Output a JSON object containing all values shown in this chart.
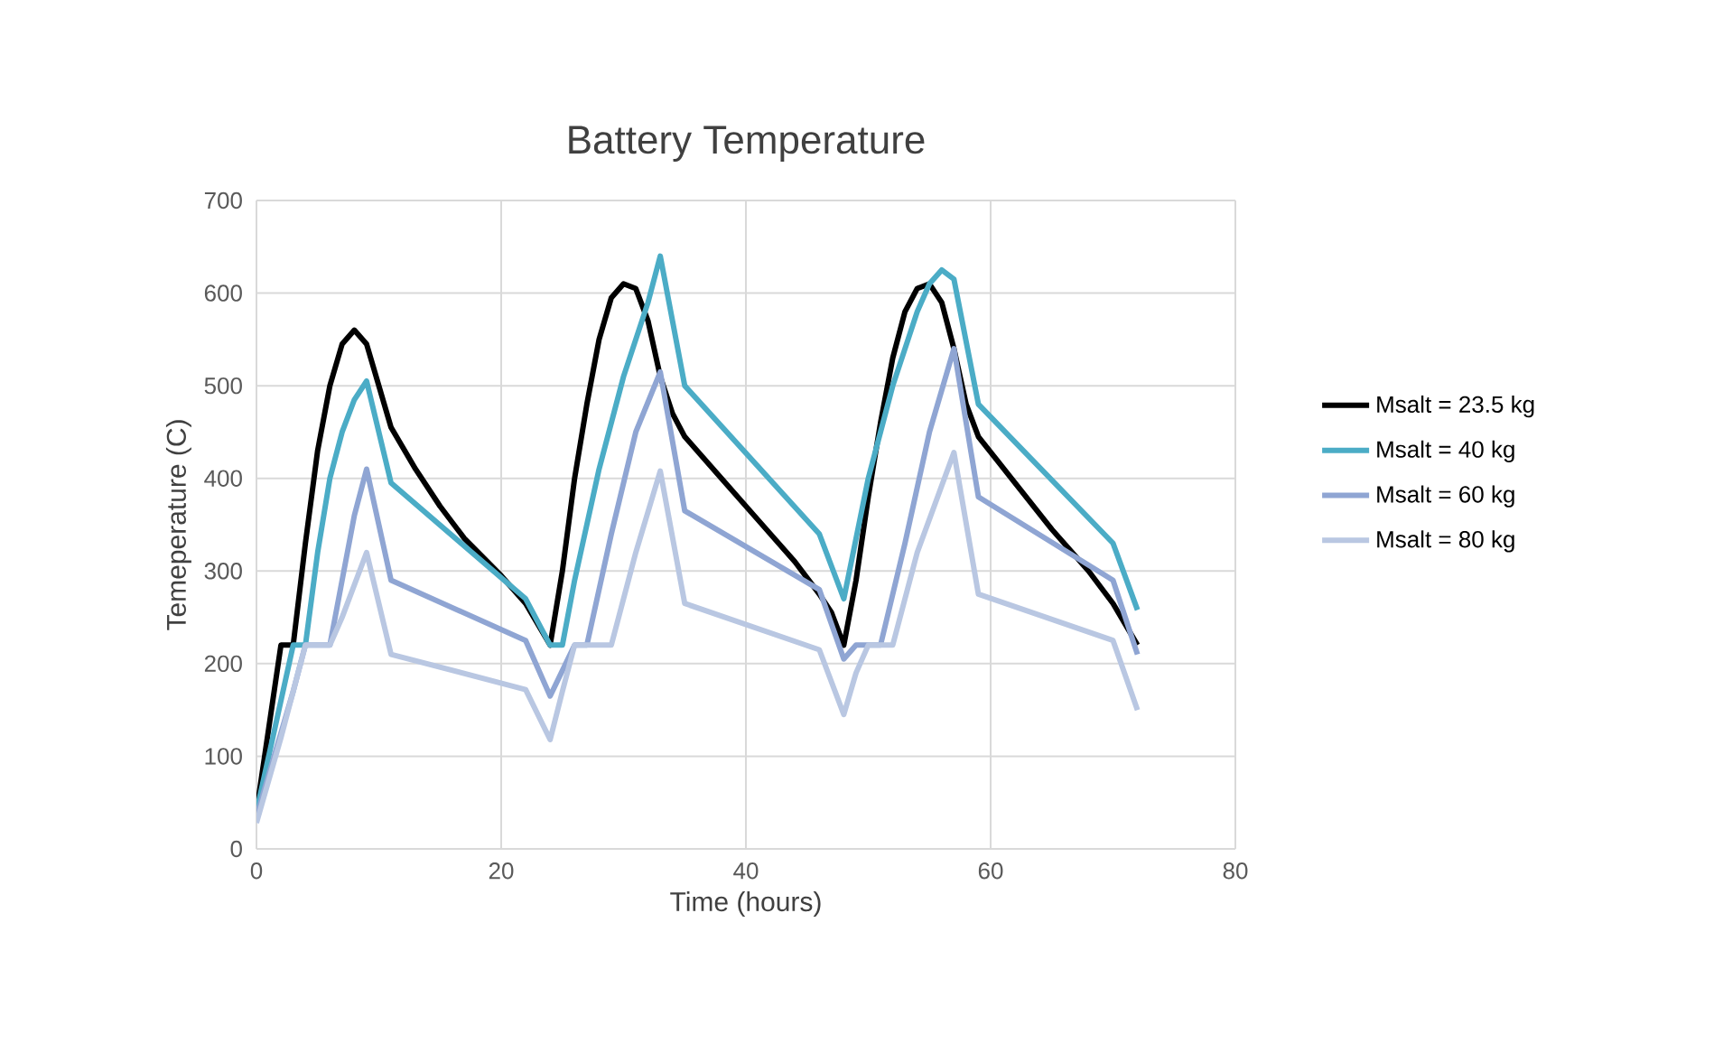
{
  "chart_data": {
    "type": "line",
    "title": "Battery Temperature",
    "xlabel": "Time (hours)",
    "ylabel": "Temeperature (C)",
    "xlim": [
      0,
      80
    ],
    "xticks": [
      0,
      20,
      40,
      60,
      80
    ],
    "ylim": [
      0,
      700
    ],
    "yticks": [
      0,
      100,
      200,
      300,
      400,
      500,
      600,
      700
    ],
    "grid": true,
    "legend": "right",
    "marker": "none",
    "line_style": "solid",
    "series": [
      {
        "name": "Msalt = 23.5 kg",
        "color": "#000000",
        "x": [
          0,
          1,
          2,
          3,
          4,
          5,
          6,
          7,
          8,
          9,
          10,
          11,
          13,
          15,
          17,
          20,
          22,
          24,
          25,
          26,
          27,
          28,
          29,
          30,
          31,
          32,
          33,
          34,
          35,
          38,
          41,
          44,
          46,
          47,
          48,
          49,
          50,
          51,
          52,
          53,
          54,
          55,
          56,
          57,
          58,
          59,
          62,
          65,
          68,
          70,
          72
        ],
        "values": [
          40,
          130,
          220,
          220,
          330,
          430,
          500,
          545,
          560,
          545,
          500,
          455,
          410,
          370,
          335,
          295,
          265,
          220,
          300,
          400,
          480,
          550,
          595,
          610,
          605,
          570,
          510,
          470,
          445,
          400,
          355,
          310,
          275,
          255,
          220,
          290,
          380,
          460,
          530,
          580,
          605,
          610,
          590,
          540,
          480,
          445,
          395,
          345,
          300,
          265,
          220
        ]
      },
      {
        "name": "Msalt = 40 kg",
        "color": "#4bacc6",
        "x": [
          0,
          3,
          4,
          5,
          6,
          7,
          8,
          9,
          11,
          22,
          24,
          25,
          26,
          28,
          30,
          32,
          33,
          35,
          46,
          48,
          50,
          52,
          54,
          55,
          56,
          57,
          59,
          70,
          72
        ],
        "values": [
          40,
          220,
          220,
          320,
          400,
          450,
          485,
          505,
          395,
          270,
          220,
          220,
          290,
          410,
          510,
          590,
          640,
          500,
          340,
          270,
          400,
          500,
          580,
          610,
          625,
          615,
          480,
          330,
          258
        ]
      },
      {
        "name": "Msalt = 60 kg",
        "color": "#8fa5d3",
        "x": [
          0,
          3,
          4,
          6,
          7,
          8,
          9,
          11,
          22,
          24,
          26,
          27,
          29,
          31,
          33,
          35,
          46,
          48,
          49,
          51,
          53,
          55,
          57,
          59,
          70,
          72
        ],
        "values": [
          35,
          170,
          220,
          220,
          290,
          360,
          410,
          290,
          225,
          165,
          220,
          220,
          340,
          450,
          515,
          365,
          280,
          205,
          220,
          220,
          330,
          450,
          540,
          380,
          290,
          210
        ]
      },
      {
        "name": "Msalt = 80 kg",
        "color": "#b9c7e2",
        "x": [
          0,
          2,
          4,
          6,
          7,
          9,
          11,
          22,
          24,
          25,
          26,
          29,
          31,
          33,
          35,
          46,
          48,
          49,
          50,
          52,
          54,
          57,
          59,
          70,
          72
        ],
        "values": [
          28,
          120,
          220,
          220,
          250,
          320,
          210,
          172,
          118,
          170,
          220,
          220,
          320,
          408,
          265,
          215,
          145,
          190,
          220,
          220,
          320,
          428,
          275,
          225,
          150
        ]
      }
    ]
  }
}
